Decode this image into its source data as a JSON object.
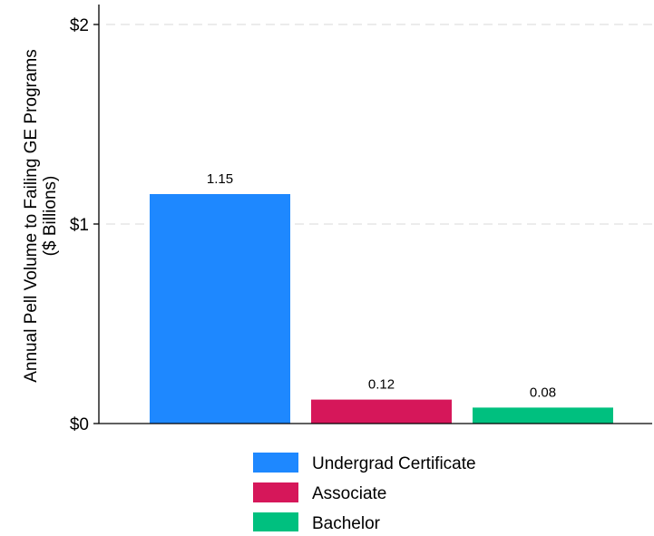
{
  "chart_data": {
    "type": "bar",
    "categories": [
      "Undergrad Certificate",
      "Associate",
      "Bachelor"
    ],
    "values": [
      1.15,
      0.12,
      0.08
    ],
    "data_labels": [
      "1.15",
      "0.12",
      "0.08"
    ],
    "colors": [
      "#1e88ff",
      "#d6175a",
      "#00c07f"
    ],
    "ylabel_lines": [
      "Annual Pell Volume to Failing GE Programs",
      "($ Billions)"
    ],
    "ylim": [
      0,
      2.1
    ],
    "yticks": [
      0,
      1,
      2
    ],
    "ytick_labels": [
      "$0",
      "$1",
      "$2"
    ],
    "grid": "horizontal-dashed",
    "legend": {
      "placement": "bottom",
      "entries": [
        "Undergrad Certificate",
        "Associate",
        "Bachelor"
      ]
    }
  }
}
